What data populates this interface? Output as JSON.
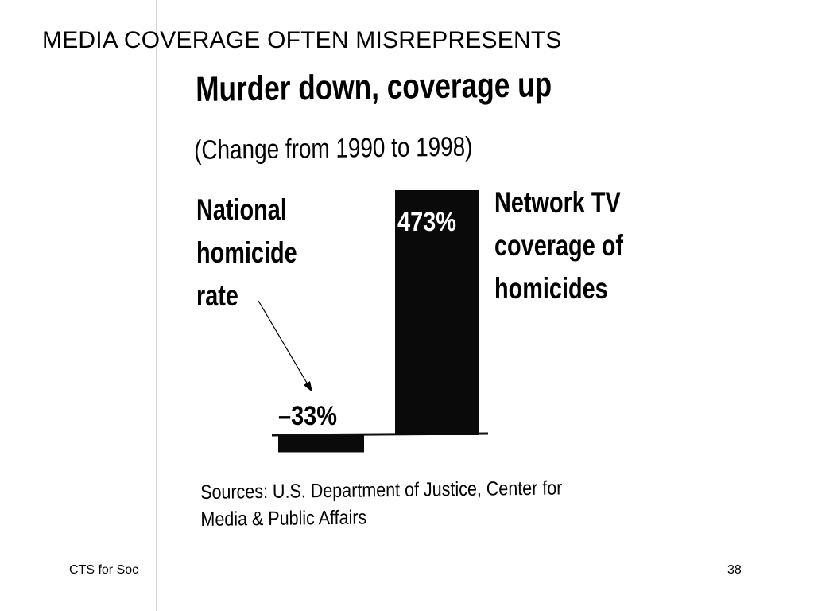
{
  "slide": {
    "title": "MEDIA COVERAGE OFTEN MISREPRESENTS",
    "footer_text": "CTS for Soc",
    "page_number": "38"
  },
  "chart_data": {
    "type": "bar",
    "title": "Murder down, coverage up",
    "subtitle": "(Change from 1990 to 1998)",
    "categories": [
      "National homicide rate",
      "Network TV coverage of homicides"
    ],
    "category_labels": [
      "National\nhomicide\nrate",
      "Network TV\ncoverage of\nhomicides"
    ],
    "values": [
      -33,
      473
    ],
    "data_labels": [
      "–33%",
      "473%"
    ],
    "units": "%",
    "ylim": [
      -33,
      473
    ],
    "grid": false,
    "sources": "Sources: U.S. Department of Justice, Center for\nMedia & Public Affairs"
  },
  "colors": {
    "bar": "#0a0a0a",
    "baseline": "#111111"
  }
}
